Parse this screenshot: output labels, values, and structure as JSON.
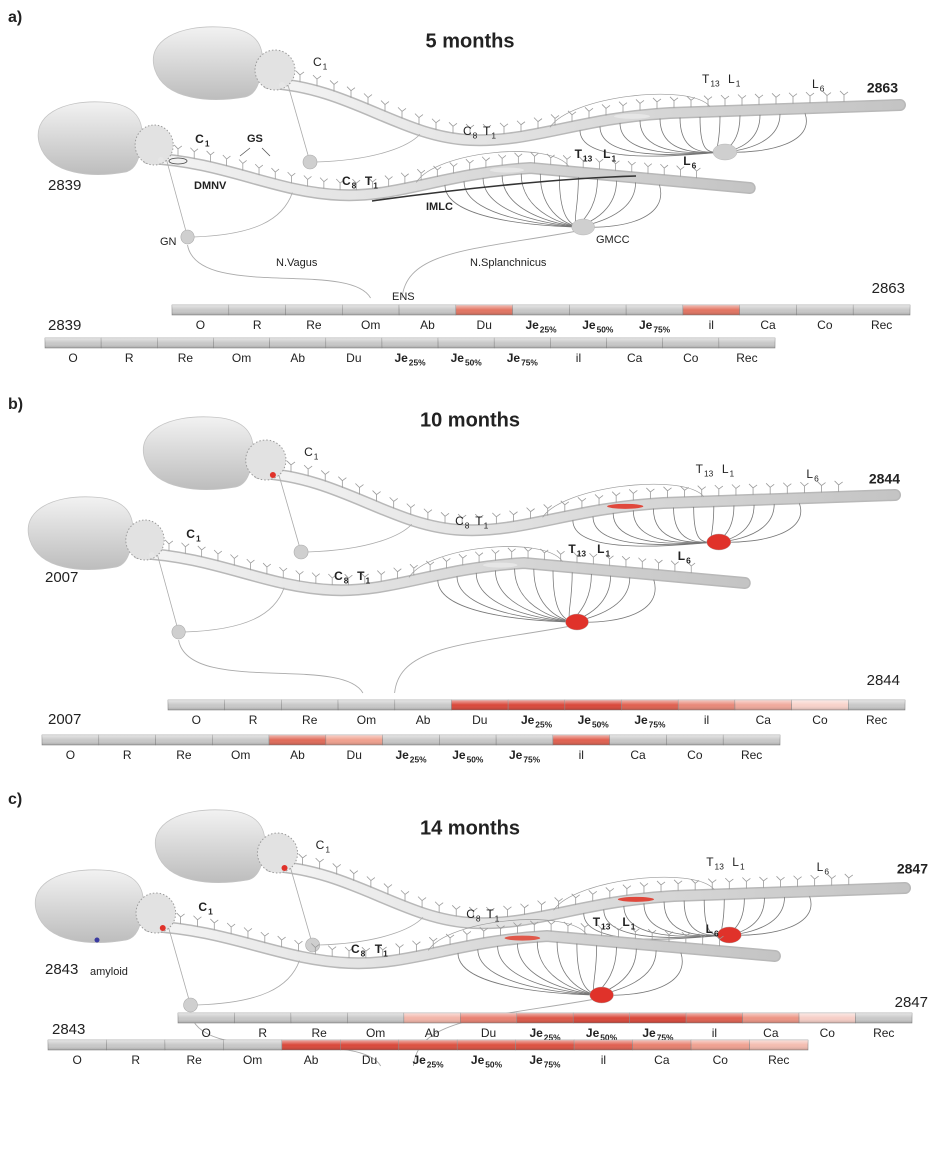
{
  "panels": [
    {
      "label": "a)",
      "title": "5 months",
      "mice": [
        {
          "id": "2863",
          "labels": [
            {
              "text": "C",
              "sub": "1"
            },
            {
              "text": "C",
              "sub": "8"
            },
            {
              "text": "T",
              "sub": "1"
            },
            {
              "text": "T",
              "sub": "13"
            },
            {
              "text": "L",
              "sub": "1"
            },
            {
              "text": "L",
              "sub": "6"
            }
          ],
          "ganglion_color": "#cfcfcf",
          "gmcc_color": "#cfcfcf",
          "brainstem_color": "#e6e6e6",
          "cord_color": "#e6e6e6"
        },
        {
          "id": "2839",
          "labels": [
            {
              "text": "C",
              "sub": "1"
            },
            {
              "text": "C",
              "sub": "8"
            },
            {
              "text": "T",
              "sub": "1"
            },
            {
              "text": "T",
              "sub": "13"
            },
            {
              "text": "L",
              "sub": "1"
            },
            {
              "text": "L",
              "sub": "6"
            }
          ],
          "ganglion_color": "#cfcfcf",
          "gmcc_color": "#cfcfcf",
          "brainstem_color": "#e6e6e6",
          "cord_color": "#e6e6e6"
        }
      ],
      "annotations": [
        "GS",
        "DMNV",
        "IMLC",
        "GN",
        "N.Vagus",
        "N.Splanchnicus",
        "GMCC",
        "ENS"
      ],
      "bars": [
        {
          "id": "2863",
          "segments": [
            {
              "label": "O",
              "color": "#c8c8c8"
            },
            {
              "label": "R",
              "color": "#c8c8c8"
            },
            {
              "label": "Re",
              "color": "#c8c8c8"
            },
            {
              "label": "Om",
              "color": "#c8c8c8"
            },
            {
              "label": "Ab",
              "color": "#c8c8c8"
            },
            {
              "label": "Du",
              "color": "#e27462"
            },
            {
              "label": "Je",
              "note": "25%",
              "color": "#c8c8c8"
            },
            {
              "label": "Je",
              "note": "50%",
              "color": "#c8c8c8"
            },
            {
              "label": "Je",
              "note": "75%",
              "color": "#c8c8c8"
            },
            {
              "label": "il",
              "color": "#e27462"
            },
            {
              "label": "Ca",
              "color": "#c8c8c8"
            },
            {
              "label": "Co",
              "color": "#c8c8c8"
            },
            {
              "label": "Rec",
              "color": "#c8c8c8"
            }
          ]
        },
        {
          "id": "2839",
          "segments": [
            {
              "label": "O",
              "color": "#c8c8c8"
            },
            {
              "label": "R",
              "color": "#c8c8c8"
            },
            {
              "label": "Re",
              "color": "#c8c8c8"
            },
            {
              "label": "Om",
              "color": "#c8c8c8"
            },
            {
              "label": "Ab",
              "color": "#c8c8c8"
            },
            {
              "label": "Du",
              "color": "#c8c8c8"
            },
            {
              "label": "Je",
              "note": "25%",
              "color": "#c8c8c8"
            },
            {
              "label": "Je",
              "note": "50%",
              "color": "#c8c8c8"
            },
            {
              "label": "Je",
              "note": "75%",
              "color": "#c8c8c8"
            },
            {
              "label": "il",
              "color": "#c8c8c8"
            },
            {
              "label": "Ca",
              "color": "#c8c8c8"
            },
            {
              "label": "Co",
              "color": "#c8c8c8"
            },
            {
              "label": "Rec",
              "color": "#c8c8c8"
            }
          ]
        }
      ]
    },
    {
      "label": "b)",
      "title": "10 months",
      "mice": [
        {
          "id": "2844",
          "labels": [
            {
              "text": "C",
              "sub": "1"
            },
            {
              "text": "C",
              "sub": "8"
            },
            {
              "text": "T",
              "sub": "1"
            },
            {
              "text": "T",
              "sub": "13"
            },
            {
              "text": "L",
              "sub": "1"
            },
            {
              "text": "L",
              "sub": "6"
            }
          ],
          "ganglion_color": "#cfcfcf",
          "gmcc_color": "#e0322a",
          "brainstem_color": "#e0322a",
          "cord_color": "#e0483c"
        },
        {
          "id": "2007",
          "labels": [
            {
              "text": "C",
              "sub": "1"
            },
            {
              "text": "C",
              "sub": "8"
            },
            {
              "text": "T",
              "sub": "1"
            },
            {
              "text": "T",
              "sub": "13"
            },
            {
              "text": "L",
              "sub": "1"
            },
            {
              "text": "L",
              "sub": "6"
            }
          ],
          "ganglion_color": "#cfcfcf",
          "gmcc_color": "#e0322a",
          "brainstem_color": "#e6e6e6",
          "cord_color": "#e6e6e6"
        }
      ],
      "annotations": [],
      "bars": [
        {
          "id": "2844",
          "segments": [
            {
              "label": "O",
              "color": "#c8c8c8"
            },
            {
              "label": "R",
              "color": "#c8c8c8"
            },
            {
              "label": "Re",
              "color": "#c8c8c8"
            },
            {
              "label": "Om",
              "color": "#c8c8c8"
            },
            {
              "label": "Ab",
              "color": "#c8c8c8"
            },
            {
              "label": "Du",
              "color": "#d9473a"
            },
            {
              "label": "Je",
              "note": "25%",
              "color": "#d9473a"
            },
            {
              "label": "Je",
              "note": "50%",
              "color": "#d9473a"
            },
            {
              "label": "Je",
              "note": "75%",
              "color": "#e0604f"
            },
            {
              "label": "il",
              "color": "#e88878"
            },
            {
              "label": "Ca",
              "color": "#f0a99c"
            },
            {
              "label": "Co",
              "color": "#f8d2ca"
            },
            {
              "label": "Rec",
              "color": "#c8c8c8"
            }
          ]
        },
        {
          "id": "2007",
          "segments": [
            {
              "label": "O",
              "color": "#c8c8c8"
            },
            {
              "label": "R",
              "color": "#c8c8c8"
            },
            {
              "label": "Re",
              "color": "#c8c8c8"
            },
            {
              "label": "Om",
              "color": "#c8c8c8"
            },
            {
              "label": "Ab",
              "color": "#e06a58"
            },
            {
              "label": "Du",
              "color": "#f0a08e"
            },
            {
              "label": "Je",
              "note": "25%",
              "color": "#c8c8c8"
            },
            {
              "label": "Je",
              "note": "50%",
              "color": "#c8c8c8"
            },
            {
              "label": "Je",
              "note": "75%",
              "color": "#c8c8c8"
            },
            {
              "label": "il",
              "color": "#e0604f"
            },
            {
              "label": "Ca",
              "color": "#c8c8c8"
            },
            {
              "label": "Co",
              "color": "#c8c8c8"
            },
            {
              "label": "Rec",
              "color": "#c8c8c8"
            }
          ]
        }
      ]
    },
    {
      "label": "c)",
      "title": "14 months",
      "mice": [
        {
          "id": "2847",
          "labels": [
            {
              "text": "C",
              "sub": "1"
            },
            {
              "text": "C",
              "sub": "8"
            },
            {
              "text": "T",
              "sub": "1"
            },
            {
              "text": "T",
              "sub": "13"
            },
            {
              "text": "L",
              "sub": "1"
            },
            {
              "text": "L",
              "sub": "6"
            }
          ],
          "ganglion_color": "#cfcfcf",
          "gmcc_color": "#e0322a",
          "brainstem_color": "#e0322a",
          "cord_color": "#e0483c"
        },
        {
          "id": "2843",
          "labels": [
            {
              "text": "C",
              "sub": "1"
            },
            {
              "text": "C",
              "sub": "8"
            },
            {
              "text": "T",
              "sub": "1"
            },
            {
              "text": "T",
              "sub": "13"
            },
            {
              "text": "L",
              "sub": "1"
            },
            {
              "text": "L",
              "sub": "6"
            }
          ],
          "ganglion_color": "#cfcfcf",
          "gmcc_color": "#e0322a",
          "brainstem_color": "#e0322a",
          "cord_color": "#e0584a"
        }
      ],
      "annotations": [
        "amyloid"
      ],
      "bars": [
        {
          "id": "2847",
          "segments": [
            {
              "label": "O",
              "color": "#c8c8c8"
            },
            {
              "label": "R",
              "color": "#c8c8c8"
            },
            {
              "label": "Re",
              "color": "#c8c8c8"
            },
            {
              "label": "Om",
              "color": "#c8c8c8"
            },
            {
              "label": "Ab",
              "color": "#f2b4a8"
            },
            {
              "label": "Du",
              "color": "#e88070"
            },
            {
              "label": "Je",
              "note": "25%",
              "color": "#dd5848"
            },
            {
              "label": "Je",
              "note": "50%",
              "color": "#d9473a"
            },
            {
              "label": "Je",
              "note": "75%",
              "color": "#d9473a"
            },
            {
              "label": "il",
              "color": "#e06050"
            },
            {
              "label": "Ca",
              "color": "#ec9484"
            },
            {
              "label": "Co",
              "color": "#f6cec6"
            },
            {
              "label": "Rec",
              "color": "#c8c8c8"
            }
          ]
        },
        {
          "id": "2843",
          "segments": [
            {
              "label": "O",
              "color": "#c8c8c8"
            },
            {
              "label": "R",
              "color": "#c8c8c8"
            },
            {
              "label": "Re",
              "color": "#c8c8c8"
            },
            {
              "label": "Om",
              "color": "#c8c8c8"
            },
            {
              "label": "Ab",
              "color": "#d9473a"
            },
            {
              "label": "Du",
              "color": "#d9473a"
            },
            {
              "label": "Je",
              "note": "25%",
              "color": "#dc5040"
            },
            {
              "label": "Je",
              "note": "50%",
              "color": "#dc5040"
            },
            {
              "label": "Je",
              "note": "75%",
              "color": "#dc5040"
            },
            {
              "label": "il",
              "color": "#e06050"
            },
            {
              "label": "Ca",
              "color": "#e8806e"
            },
            {
              "label": "Co",
              "color": "#f0a090"
            },
            {
              "label": "Rec",
              "color": "#f4bcb0"
            }
          ]
        }
      ]
    }
  ]
}
